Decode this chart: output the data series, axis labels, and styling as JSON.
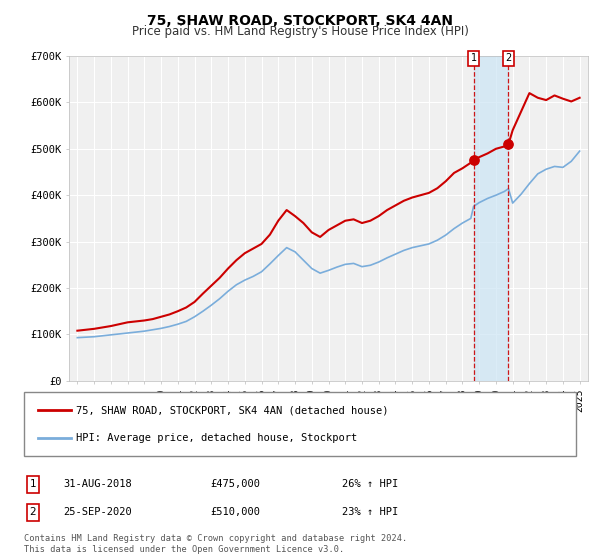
{
  "title": "75, SHAW ROAD, STOCKPORT, SK4 4AN",
  "subtitle": "Price paid vs. HM Land Registry's House Price Index (HPI)",
  "background_color": "#ffffff",
  "plot_bg_color": "#f0f0f0",
  "grid_color": "#ffffff",
  "red_line_color": "#cc0000",
  "blue_line_color": "#7aaddb",
  "marker1_x": 2018.667,
  "marker1_y": 475000,
  "marker2_x": 2020.75,
  "marker2_y": 510000,
  "vline1_x": 2018.667,
  "vline2_x": 2020.75,
  "ylim": [
    0,
    700000
  ],
  "xlim": [
    1994.5,
    2025.5
  ],
  "legend_label1": "75, SHAW ROAD, STOCKPORT, SK4 4AN (detached house)",
  "legend_label2": "HPI: Average price, detached house, Stockport",
  "annotation1_date": "31-AUG-2018",
  "annotation1_price": "£475,000",
  "annotation1_hpi": "26% ↑ HPI",
  "annotation2_date": "25-SEP-2020",
  "annotation2_price": "£510,000",
  "annotation2_hpi": "23% ↑ HPI",
  "footer1": "Contains HM Land Registry data © Crown copyright and database right 2024.",
  "footer2": "This data is licensed under the Open Government Licence v3.0.",
  "red_x": [
    1995.0,
    1995.5,
    1996.0,
    1996.5,
    1997.0,
    1997.5,
    1998.0,
    1998.5,
    1999.0,
    1999.5,
    2000.0,
    2000.5,
    2001.0,
    2001.5,
    2002.0,
    2002.5,
    2003.0,
    2003.5,
    2004.0,
    2004.5,
    2005.0,
    2005.5,
    2006.0,
    2006.5,
    2007.0,
    2007.5,
    2008.0,
    2008.5,
    2009.0,
    2009.5,
    2010.0,
    2010.5,
    2011.0,
    2011.5,
    2012.0,
    2012.5,
    2013.0,
    2013.5,
    2014.0,
    2014.5,
    2015.0,
    2015.5,
    2016.0,
    2016.5,
    2017.0,
    2017.5,
    2018.0,
    2018.5,
    2018.667,
    2019.0,
    2019.5,
    2020.0,
    2020.5,
    2020.75,
    2021.0,
    2021.5,
    2022.0,
    2022.5,
    2023.0,
    2023.5,
    2024.0,
    2024.5,
    2025.0
  ],
  "red_y": [
    108000,
    110000,
    112000,
    115000,
    118000,
    122000,
    126000,
    128000,
    130000,
    133000,
    138000,
    143000,
    150000,
    158000,
    170000,
    188000,
    205000,
    222000,
    242000,
    260000,
    275000,
    285000,
    295000,
    315000,
    345000,
    368000,
    355000,
    340000,
    320000,
    310000,
    325000,
    335000,
    345000,
    348000,
    340000,
    345000,
    355000,
    368000,
    378000,
    388000,
    395000,
    400000,
    405000,
    415000,
    430000,
    448000,
    458000,
    470000,
    475000,
    482000,
    490000,
    500000,
    505000,
    510000,
    540000,
    580000,
    620000,
    610000,
    605000,
    615000,
    608000,
    602000,
    610000
  ],
  "blue_x": [
    1995.0,
    1995.5,
    1996.0,
    1996.5,
    1997.0,
    1997.5,
    1998.0,
    1998.5,
    1999.0,
    1999.5,
    2000.0,
    2000.5,
    2001.0,
    2001.5,
    2002.0,
    2002.5,
    2003.0,
    2003.5,
    2004.0,
    2004.5,
    2005.0,
    2005.5,
    2006.0,
    2006.5,
    2007.0,
    2007.5,
    2008.0,
    2008.5,
    2009.0,
    2009.5,
    2010.0,
    2010.5,
    2011.0,
    2011.5,
    2012.0,
    2012.5,
    2013.0,
    2013.5,
    2014.0,
    2014.5,
    2015.0,
    2015.5,
    2016.0,
    2016.5,
    2017.0,
    2017.5,
    2018.0,
    2018.5,
    2018.667,
    2019.0,
    2019.5,
    2020.0,
    2020.5,
    2020.75,
    2021.0,
    2021.5,
    2022.0,
    2022.5,
    2023.0,
    2023.5,
    2024.0,
    2024.5,
    2025.0
  ],
  "blue_y": [
    93000,
    94000,
    95000,
    97000,
    99000,
    101000,
    103000,
    105000,
    107000,
    110000,
    113000,
    117000,
    122000,
    128000,
    138000,
    150000,
    163000,
    177000,
    193000,
    207000,
    217000,
    225000,
    235000,
    252000,
    270000,
    287000,
    278000,
    260000,
    242000,
    232000,
    238000,
    245000,
    251000,
    253000,
    246000,
    249000,
    256000,
    265000,
    273000,
    281000,
    287000,
    291000,
    295000,
    303000,
    314000,
    328000,
    340000,
    350000,
    376000,
    384000,
    393000,
    400000,
    408000,
    414000,
    383000,
    402000,
    425000,
    446000,
    456000,
    462000,
    460000,
    473000,
    495000
  ]
}
